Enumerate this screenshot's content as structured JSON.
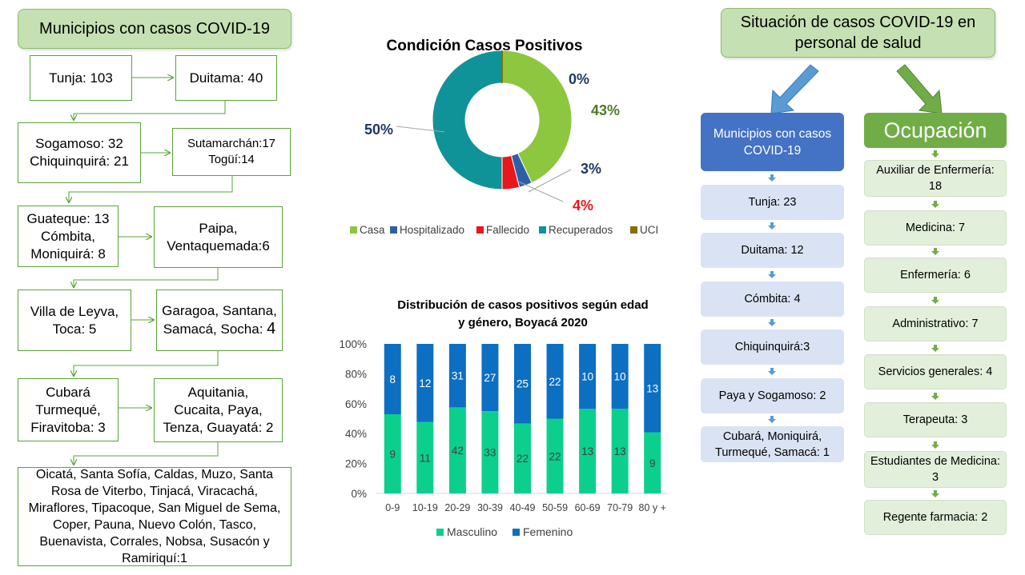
{
  "left_panel": {
    "title": "Municipios con casos COVID-19",
    "boxes": {
      "tunja": "Tunja: 103",
      "duitama": "Duitama: 40",
      "sogamoso": "Sogamoso: 32\nChiquinquirá: 21",
      "sutamarchan": "Sutamarchán:17\nTogüí:14",
      "guateque": "Guateque: 13\nCómbita,\nMoniquirá: 8",
      "paipa": "Paipa,\nVentaquemada:6",
      "villa": "Villa de Leyva,\nToca: 5",
      "garagoa_text": "Garagoa, Santana,\nSamacá, Socha: ",
      "garagoa_num": "4",
      "cubara": "Cubará\nTurmequé,\nFiravitoba: 3",
      "aquitania": "Aquitania,\nCucaita, Paya,\nTenza, Guayatá: 2",
      "oicata": "Oicatá, Santa Sofía, Caldas, Muzo, Santa Rosa de Viterbo, Tinjacá, Viracachá, Miraflores, Tipacoque, San Miguel de Sema, Coper, Pauna, Nuevo Colón, Tasco, Buenavista, Corrales, Nobsa, Susacón y Ramiriquí:1"
    }
  },
  "right_panel": {
    "title": "Situación de casos COVID-19 en personal de salud",
    "municipios": {
      "header": "Municipios con casos COVID-19",
      "items": [
        "Tunja: 23",
        "Duitama: 12",
        "Cómbita: 4",
        "Chiquinquirá:3",
        "Paya y Sogamoso: 2",
        "Cubará, Moniquirá, Turmequé, Samacá: 1"
      ]
    },
    "ocupacion": {
      "header": "Ocupación",
      "items": [
        "Auxiliar de Enfermería: 18",
        "Medicina: 7",
        "Enfermería: 6",
        "Administrativo:  7",
        "Servicios generales: 4",
        "Terapeuta: 3",
        "Estudiantes de Medicina: 3",
        "Regente farmacia: 2"
      ]
    }
  },
  "colors": {
    "casa": "#8dc63f",
    "hospitalizado": "#2e5fa6",
    "fallecido": "#e8161d",
    "recuperados": "#0f9398",
    "uci": "#8c6d00",
    "masculino": "#0ccf8e",
    "femenino": "#0c6fc2",
    "blue_header": "#4472c4",
    "green_header": "#70ad47"
  },
  "chart_data": [
    {
      "type": "pie",
      "variant": "donut",
      "title": "Condición Casos Positivos",
      "categories": [
        "Casa",
        "Hospitalizado",
        "Fallecido",
        "Recuperados",
        "UCI"
      ],
      "values": [
        43,
        3,
        4,
        50,
        0
      ],
      "labels": [
        "43%",
        "3%",
        "4%",
        "50%",
        "0%"
      ],
      "legend": "bottom"
    },
    {
      "type": "bar",
      "stacked": true,
      "percent": true,
      "title": "Distribución de casos positivos según edad y género, Boyacá 2020",
      "categories": [
        "0-9",
        "10-19",
        "20-29",
        "30-39",
        "40-49",
        "50-59",
        "60-69",
        "70-79",
        "80 y +"
      ],
      "series": [
        {
          "name": "Masculino",
          "values": [
            9,
            11,
            42,
            33,
            22,
            22,
            13,
            13,
            9
          ]
        },
        {
          "name": "Femenino",
          "values": [
            8,
            12,
            31,
            27,
            25,
            22,
            10,
            10,
            13
          ]
        }
      ],
      "yticks": [
        "0%",
        "20%",
        "40%",
        "60%",
        "80%",
        "100%"
      ],
      "ylim": [
        0,
        100
      ],
      "legend": "bottom"
    }
  ]
}
